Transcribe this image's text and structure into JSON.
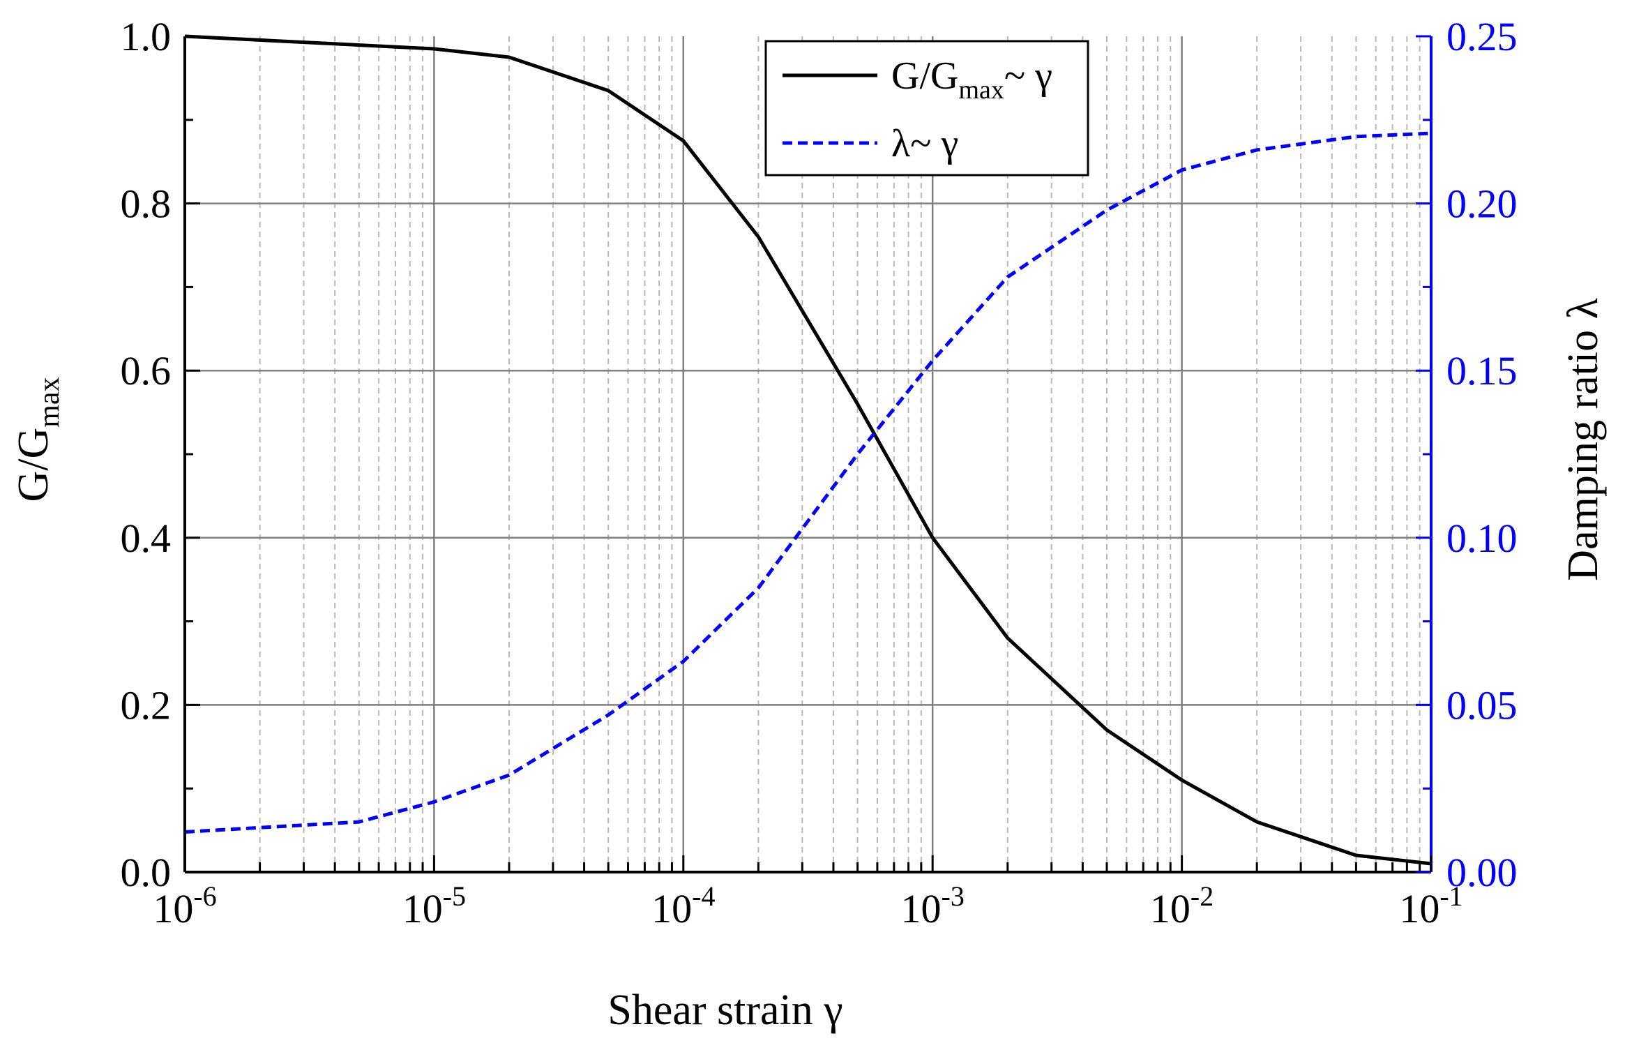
{
  "chart_data": {
    "type": "line",
    "x_scale": "log",
    "xlim": [
      1e-06,
      0.1
    ],
    "x_ticks": [
      {
        "base": "10",
        "exp": "-6",
        "value": 1e-06
      },
      {
        "base": "10",
        "exp": "-5",
        "value": 1e-05
      },
      {
        "base": "10",
        "exp": "-4",
        "value": 0.0001
      },
      {
        "base": "10",
        "exp": "-3",
        "value": 0.001
      },
      {
        "base": "10",
        "exp": "-2",
        "value": 0.01
      },
      {
        "base": "10",
        "exp": "-1",
        "value": 0.1
      }
    ],
    "xlabel": "Shear strain γ",
    "ylabel_left": {
      "main": "G/G",
      "sub": "max"
    },
    "ylabel_right": "Damping ratio λ",
    "ylim_left": [
      0,
      1.0
    ],
    "ylim_right": [
      0,
      0.25
    ],
    "y_ticks_left": [
      {
        "label": "0.0",
        "value": 0.0
      },
      {
        "label": "0.2",
        "value": 0.2
      },
      {
        "label": "0.4",
        "value": 0.4
      },
      {
        "label": "0.6",
        "value": 0.6
      },
      {
        "label": "0.8",
        "value": 0.8
      },
      {
        "label": "1.0",
        "value": 1.0
      }
    ],
    "y_ticks_right": [
      {
        "label": "0.00",
        "value": 0.0
      },
      {
        "label": "0.05",
        "value": 0.05
      },
      {
        "label": "0.10",
        "value": 0.1
      },
      {
        "label": "0.15",
        "value": 0.15
      },
      {
        "label": "0.20",
        "value": 0.2
      },
      {
        "label": "0.25",
        "value": 0.25
      }
    ],
    "grid": true,
    "legend_position": "top-center",
    "series": [
      {
        "name": "G/Gmax~ γ",
        "legend_main": "G/G",
        "legend_sub": "max",
        "legend_tail": "~ γ",
        "axis": "left",
        "style": "solid",
        "color": "#000000",
        "x": [
          1e-06,
          1e-05,
          2e-05,
          5e-05,
          0.0001,
          0.0002,
          0.0005,
          0.001,
          0.002,
          0.005,
          0.01,
          0.02,
          0.05,
          0.1
        ],
        "y": [
          1.0,
          0.985,
          0.975,
          0.935,
          0.875,
          0.76,
          0.56,
          0.4,
          0.28,
          0.17,
          0.11,
          0.06,
          0.02,
          0.01
        ]
      },
      {
        "name": "λ~ γ",
        "legend_main": "λ~ γ",
        "legend_sub": "",
        "legend_tail": "",
        "axis": "right",
        "style": "dashed",
        "color": "#0000ff",
        "x": [
          1e-06,
          5e-06,
          1e-05,
          2e-05,
          5e-05,
          0.0001,
          0.0002,
          0.0005,
          0.001,
          0.002,
          0.005,
          0.01,
          0.02,
          0.05,
          0.1
        ],
        "y": [
          0.012,
          0.015,
          0.021,
          0.029,
          0.047,
          0.063,
          0.085,
          0.125,
          0.153,
          0.178,
          0.198,
          0.21,
          0.216,
          0.22,
          0.221
        ]
      }
    ]
  },
  "colors": {
    "left_axis": "#000000",
    "right_axis": "#0000ff",
    "major_grid": "#808080",
    "minor_grid": "#b8b8b8"
  }
}
